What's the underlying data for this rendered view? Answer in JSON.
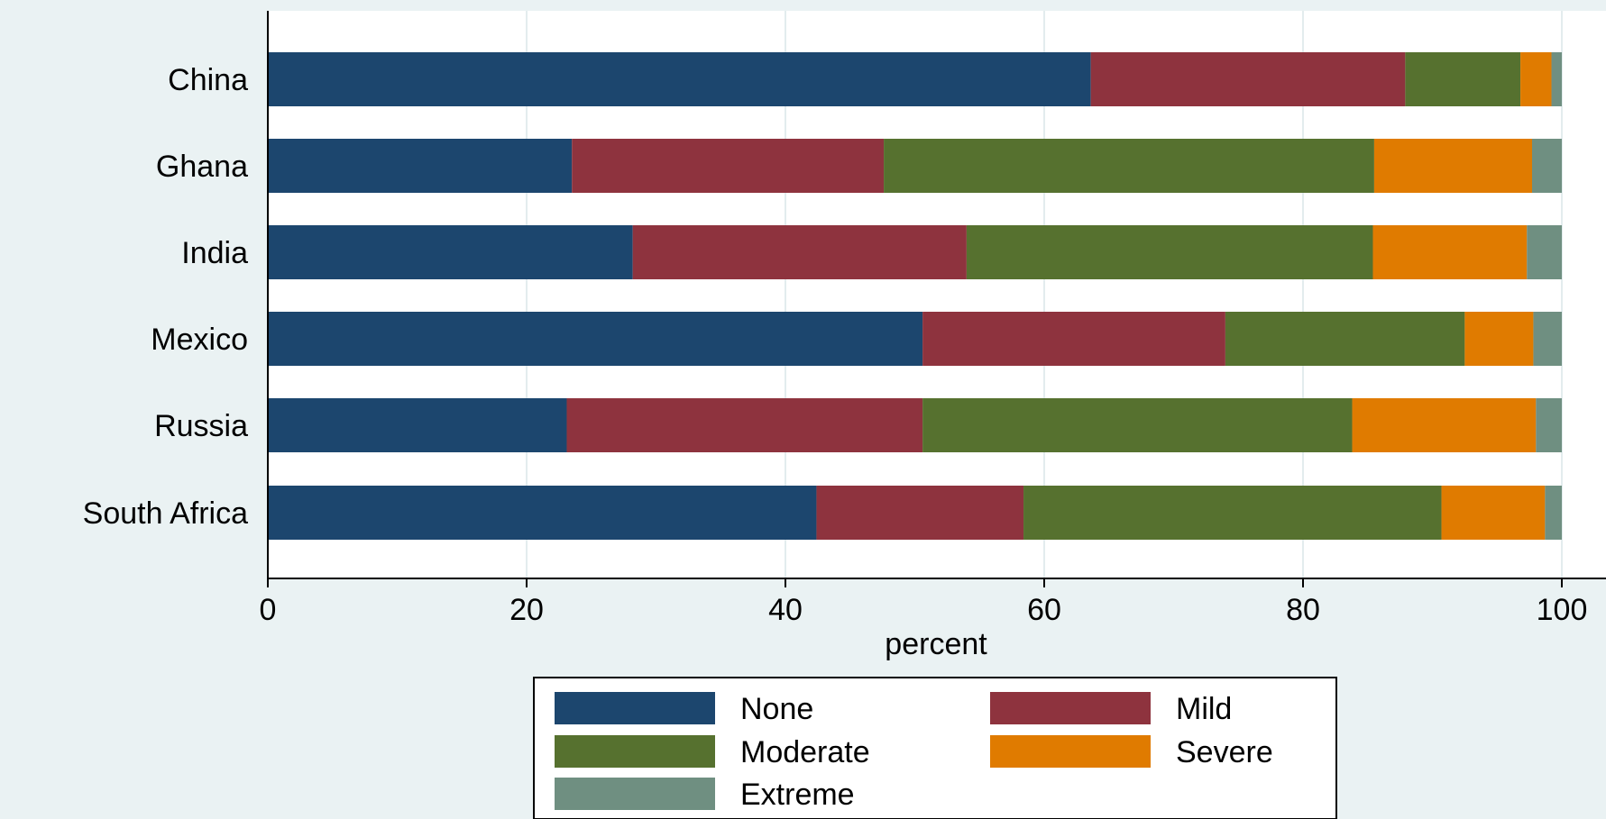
{
  "chart_data": {
    "type": "bar",
    "orientation": "horizontal",
    "stacked": true,
    "categories": [
      "China",
      "Ghana",
      "India",
      "Mexico",
      "Russia",
      "South Africa"
    ],
    "series": [
      {
        "name": "None",
        "color": "#1c466e",
        "values": [
          63.6,
          23.5,
          28.2,
          50.6,
          23.1,
          42.4
        ]
      },
      {
        "name": "Mild",
        "color": "#8e333e",
        "values": [
          24.3,
          24.1,
          25.8,
          23.4,
          27.5,
          16.0
        ]
      },
      {
        "name": "Moderate",
        "color": "#56712f",
        "values": [
          8.9,
          37.9,
          31.4,
          18.5,
          33.2,
          32.3
        ]
      },
      {
        "name": "Severe",
        "color": "#e07b00",
        "values": [
          2.4,
          12.2,
          11.9,
          5.3,
          14.2,
          8.0
        ]
      },
      {
        "name": "Extreme",
        "color": "#6f8f81",
        "values": [
          0.8,
          2.3,
          2.7,
          2.2,
          2.0,
          1.3
        ]
      }
    ],
    "xlabel": "percent",
    "xlim": [
      0,
      100
    ],
    "xticks": [
      "0",
      "20",
      "40",
      "60",
      "80",
      "100"
    ],
    "grid": true,
    "legend_placement": "bottom"
  }
}
